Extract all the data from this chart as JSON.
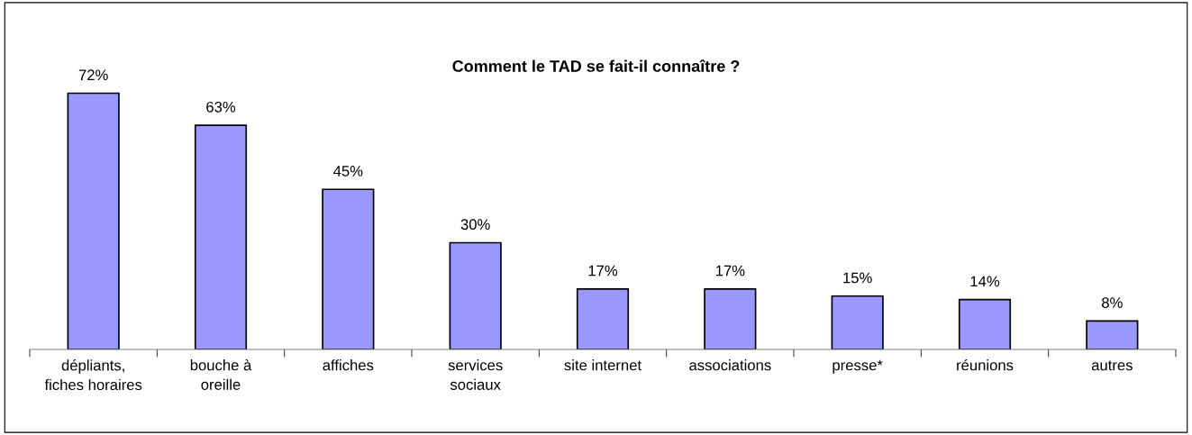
{
  "chart_data": {
    "type": "bar",
    "title": "Comment le TAD se fait-il connaître ?",
    "categories": [
      "dépliants,\nfiches horaires",
      "bouche à\noreille",
      "affiches",
      "services\nsociaux",
      "site internet",
      "associations",
      "presse*",
      "réunions",
      "autres"
    ],
    "values": [
      72,
      63,
      45,
      30,
      17,
      17,
      15,
      14,
      8
    ],
    "value_labels": [
      "72%",
      "63%",
      "45%",
      "30%",
      "17%",
      "17%",
      "15%",
      "14%",
      "8%"
    ],
    "color": "#9999ff"
  }
}
